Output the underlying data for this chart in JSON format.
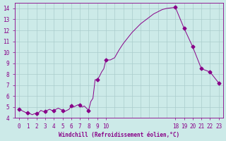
{
  "xlabel": "Windchill (Refroidissement éolien,°C)",
  "background_color": "#cceae8",
  "line_color": "#880088",
  "marker_color": "#880088",
  "grid_color": "#aacccc",
  "xlim": [
    -0.5,
    23.5
  ],
  "ylim": [
    4.0,
    14.5
  ],
  "yticks": [
    4,
    5,
    6,
    7,
    8,
    9,
    10,
    11,
    12,
    13,
    14
  ],
  "xticks": [
    0,
    1,
    2,
    3,
    4,
    5,
    6,
    7,
    8,
    9,
    10,
    18,
    19,
    20,
    21,
    22,
    23
  ],
  "hours": [
    0,
    0.25,
    0.5,
    0.75,
    1,
    1.25,
    1.5,
    1.75,
    2,
    2.25,
    2.5,
    2.75,
    3,
    3.25,
    3.5,
    3.75,
    4,
    4.25,
    4.5,
    4.75,
    5,
    5.25,
    5.5,
    5.75,
    6,
    6.25,
    6.5,
    6.75,
    7,
    7.25,
    7.5,
    7.75,
    8,
    8.25,
    8.5,
    8.75,
    9,
    9.25,
    9.5,
    9.75,
    10,
    10.5,
    11,
    11.5,
    12,
    12.5,
    13,
    13.5,
    14,
    14.5,
    15,
    15.5,
    16,
    16.5,
    17,
    17.5,
    18,
    19,
    20,
    21,
    22,
    23
  ],
  "values": [
    4.8,
    4.7,
    4.6,
    4.5,
    4.5,
    4.4,
    4.3,
    4.4,
    4.4,
    4.5,
    4.7,
    4.6,
    4.6,
    4.7,
    4.8,
    4.7,
    4.7,
    4.8,
    4.9,
    4.8,
    4.7,
    4.6,
    4.7,
    4.8,
    5.1,
    5.0,
    5.1,
    5.2,
    5.2,
    5.0,
    5.1,
    4.9,
    4.7,
    5.5,
    5.8,
    7.5,
    7.5,
    7.8,
    8.2,
    8.5,
    9.3,
    9.3,
    9.5,
    10.2,
    10.8,
    11.3,
    11.8,
    12.2,
    12.6,
    12.9,
    13.2,
    13.5,
    13.7,
    13.9,
    14.0,
    14.05,
    14.1,
    12.2,
    10.5,
    8.5,
    8.2,
    7.2
  ],
  "marker_hours": [
    0,
    1,
    2,
    3,
    4,
    5,
    6,
    7,
    8,
    9,
    10,
    18,
    19,
    20,
    21,
    22,
    23
  ],
  "marker_values": [
    4.8,
    4.5,
    4.4,
    4.6,
    4.7,
    4.7,
    5.1,
    5.2,
    4.7,
    7.5,
    9.3,
    14.1,
    12.2,
    10.5,
    8.5,
    8.2,
    7.2
  ]
}
